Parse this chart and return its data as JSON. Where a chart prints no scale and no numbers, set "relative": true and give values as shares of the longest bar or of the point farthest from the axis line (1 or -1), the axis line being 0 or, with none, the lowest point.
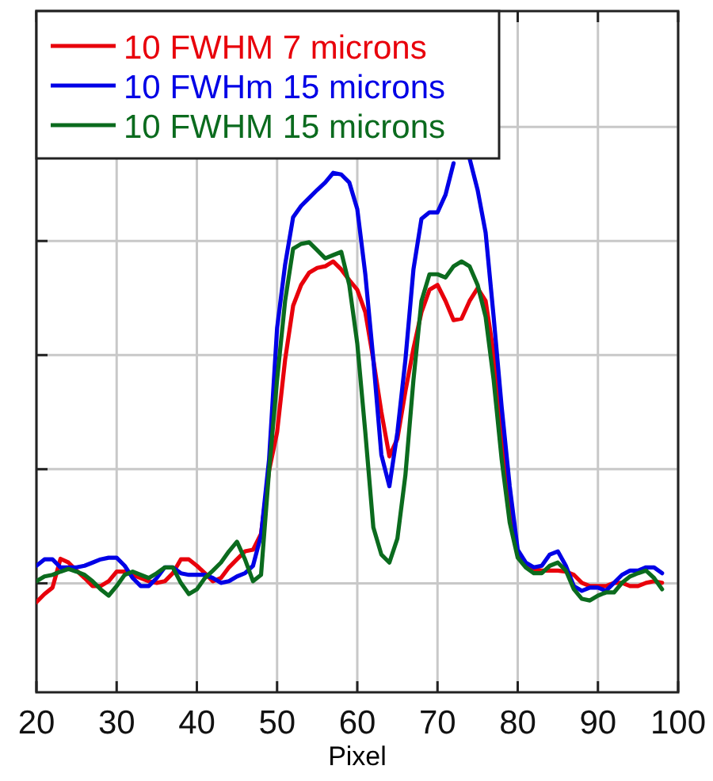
{
  "chart_data": {
    "type": "line",
    "xlabel": "Pixel",
    "relative": true,
    "xlim": [
      20,
      100
    ],
    "xticks": [
      20,
      30,
      40,
      50,
      60,
      70,
      80,
      90,
      100
    ],
    "grid": true,
    "legend": "top left",
    "line_style": "solid",
    "x": [
      20,
      21,
      22,
      23,
      24,
      25,
      26,
      27,
      28,
      29,
      30,
      31,
      32,
      33,
      34,
      35,
      36,
      37,
      38,
      39,
      40,
      41,
      42,
      43,
      44,
      45,
      46,
      47,
      48,
      49,
      50,
      51,
      52,
      53,
      54,
      55,
      56,
      57,
      58,
      59,
      60,
      61,
      62,
      63,
      64,
      65,
      66,
      67,
      68,
      69,
      70,
      71,
      72,
      73,
      74,
      75,
      76,
      77,
      78,
      79,
      80,
      81,
      82,
      83,
      84,
      85,
      86,
      87,
      88,
      89,
      90,
      91,
      92,
      93,
      94,
      95,
      96,
      97,
      98
    ],
    "series": [
      {
        "name": "10 FWHM 7 microns",
        "color": "#e8000b",
        "values": [
          0.169,
          0.184,
          0.196,
          0.25,
          0.243,
          0.228,
          0.214,
          0.199,
          0.199,
          0.208,
          0.226,
          0.226,
          0.22,
          0.214,
          0.208,
          0.205,
          0.208,
          0.223,
          0.249,
          0.249,
          0.237,
          0.223,
          0.208,
          0.214,
          0.234,
          0.249,
          0.264,
          0.267,
          0.297,
          0.415,
          0.487,
          0.623,
          0.724,
          0.763,
          0.786,
          0.795,
          0.798,
          0.807,
          0.792,
          0.772,
          0.754,
          0.712,
          0.623,
          0.525,
          0.442,
          0.475,
          0.564,
          0.644,
          0.712,
          0.754,
          0.763,
          0.733,
          0.697,
          0.7,
          0.733,
          0.757,
          0.733,
          0.635,
          0.487,
          0.368,
          0.258,
          0.237,
          0.231,
          0.228,
          0.228,
          0.228,
          0.226,
          0.22,
          0.205,
          0.199,
          0.199,
          0.199,
          0.205,
          0.205,
          0.199,
          0.199,
          0.205,
          0.208,
          0.205
        ]
      },
      {
        "name": "10 FWHm 15 microns",
        "color": "#0000e6",
        "values": [
          0.237,
          0.249,
          0.249,
          0.234,
          0.234,
          0.234,
          0.237,
          0.243,
          0.249,
          0.252,
          0.252,
          0.237,
          0.214,
          0.199,
          0.199,
          0.214,
          0.234,
          0.234,
          0.223,
          0.22,
          0.22,
          0.22,
          0.214,
          0.205,
          0.208,
          0.217,
          0.223,
          0.237,
          0.294,
          0.436,
          0.682,
          0.801,
          0.89,
          0.911,
          0.926,
          0.941,
          0.955,
          0.973,
          0.97,
          0.955,
          0.905,
          0.783,
          0.623,
          0.445,
          0.386,
          0.487,
          0.623,
          0.792,
          0.887,
          0.899,
          0.899,
          0.932,
          0.991,
          null,
          1.0,
          0.941,
          0.861,
          0.703,
          0.534,
          0.386,
          0.267,
          0.243,
          0.234,
          0.237,
          0.258,
          0.264,
          0.237,
          0.199,
          0.19,
          0.196,
          0.196,
          0.19,
          0.205,
          0.22,
          0.228,
          0.228,
          0.234,
          0.234,
          0.223
        ]
      },
      {
        "name": "10 FWHM 15 microns",
        "color": "#0b6b1e",
        "values": [
          0.208,
          0.217,
          0.22,
          0.226,
          0.231,
          0.226,
          0.22,
          0.208,
          0.193,
          0.181,
          0.199,
          0.22,
          0.226,
          0.22,
          0.214,
          0.223,
          0.234,
          0.234,
          0.205,
          0.184,
          0.193,
          0.214,
          0.228,
          0.243,
          0.264,
          0.282,
          0.249,
          0.208,
          0.22,
          0.415,
          0.585,
          0.733,
          0.831,
          0.84,
          0.843,
          0.828,
          0.813,
          0.819,
          0.825,
          0.763,
          0.653,
          0.487,
          0.309,
          0.258,
          0.243,
          0.288,
          0.407,
          0.585,
          0.733,
          0.783,
          0.783,
          0.777,
          0.798,
          0.807,
          0.798,
          0.763,
          0.703,
          0.585,
          0.436,
          0.318,
          0.252,
          0.234,
          0.223,
          0.223,
          0.237,
          0.243,
          0.228,
          0.193,
          0.175,
          0.172,
          0.181,
          0.187,
          0.187,
          0.205,
          0.217,
          0.223,
          0.228,
          0.214,
          0.193
        ]
      }
    ]
  }
}
